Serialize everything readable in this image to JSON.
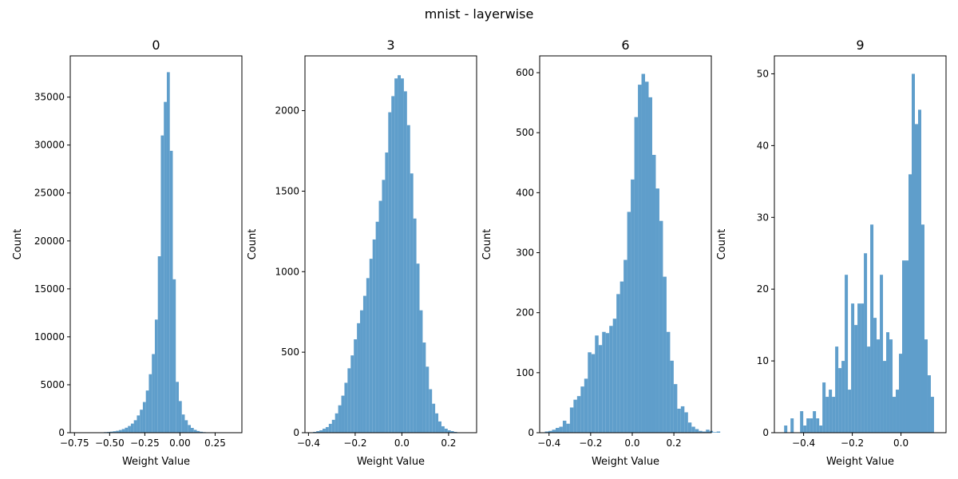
{
  "figure": {
    "title": "mnist - layerwise"
  },
  "chart_data": [
    {
      "type": "histogram",
      "title": "0",
      "xlabel": "Weight Value",
      "ylabel": "Count",
      "bar_color": "#5f9ecb",
      "xlim": [
        -0.78,
        0.44
      ],
      "ylim": [
        0,
        39300
      ],
      "xticks": [
        -0.75,
        -0.5,
        -0.25,
        0.0,
        0.25
      ],
      "xtick_labels": [
        "−0.75",
        "−0.50",
        "−0.25",
        "0.00",
        "0.25"
      ],
      "yticks": [
        0,
        5000,
        10000,
        15000,
        20000,
        25000,
        30000,
        35000
      ],
      "ytick_labels": [
        "0",
        "5000",
        "10000",
        "15000",
        "20000",
        "25000",
        "30000",
        "35000"
      ],
      "bins": {
        "start": -0.69,
        "width": 0.0213
      },
      "values": [
        2,
        3,
        5,
        8,
        15,
        25,
        40,
        60,
        80,
        110,
        150,
        200,
        280,
        380,
        520,
        700,
        950,
        1300,
        1800,
        2400,
        3200,
        4400,
        6100,
        8200,
        11800,
        18400,
        31000,
        34500,
        37600,
        29400,
        16000,
        5300,
        3300,
        1900,
        1300,
        800,
        500,
        300,
        180,
        100,
        60,
        30,
        15,
        8
      ]
    },
    {
      "type": "histogram",
      "title": "3",
      "xlabel": "Weight Value",
      "ylabel": "Count",
      "bar_color": "#5f9ecb",
      "xlim": [
        -0.415,
        0.32
      ],
      "ylim": [
        0,
        2340
      ],
      "xticks": [
        -0.4,
        -0.2,
        0.0,
        0.2
      ],
      "xtick_labels": [
        "−0.4",
        "−0.2",
        "0.0",
        "0.2"
      ],
      "yticks": [
        0,
        500,
        1000,
        1500,
        2000
      ],
      "ytick_labels": [
        "0",
        "500",
        "1000",
        "1500",
        "2000"
      ],
      "bins": {
        "start": -0.38,
        "width": 0.0134
      },
      "values": [
        5,
        10,
        15,
        25,
        35,
        55,
        80,
        120,
        170,
        230,
        310,
        400,
        480,
        580,
        680,
        760,
        850,
        960,
        1080,
        1200,
        1310,
        1440,
        1570,
        1740,
        1990,
        2090,
        2200,
        2220,
        2200,
        2120,
        1910,
        1610,
        1330,
        1050,
        760,
        560,
        410,
        270,
        180,
        120,
        70,
        40,
        25,
        15,
        10,
        5
      ]
    },
    {
      "type": "histogram",
      "title": "6",
      "xlabel": "Weight Value",
      "ylabel": "Count",
      "bar_color": "#5f9ecb",
      "xlim": [
        -0.445,
        0.38
      ],
      "ylim": [
        0,
        628
      ],
      "xticks": [
        -0.4,
        -0.2,
        0.0,
        0.2
      ],
      "xtick_labels": [
        "−0.4",
        "−0.2",
        "0.0",
        "0.2"
      ],
      "yticks": [
        0,
        100,
        200,
        300,
        400,
        500,
        600
      ],
      "ytick_labels": [
        "0",
        "100",
        "200",
        "300",
        "400",
        "500",
        "600"
      ],
      "bins": {
        "start": -0.42,
        "width": 0.0172
      },
      "values": [
        2,
        3,
        5,
        8,
        10,
        20,
        15,
        42,
        55,
        61,
        77,
        90,
        134,
        131,
        162,
        146,
        168,
        166,
        178,
        190,
        231,
        252,
        288,
        368,
        422,
        526,
        580,
        598,
        585,
        559,
        463,
        407,
        353,
        260,
        168,
        120,
        81,
        40,
        44,
        34,
        17,
        10,
        6,
        3,
        2,
        5,
        3,
        1,
        2
      ]
    },
    {
      "type": "histogram",
      "title": "9",
      "xlabel": "Weight Value",
      "ylabel": "Count",
      "bar_color": "#5f9ecb",
      "xlim": [
        -0.52,
        0.185
      ],
      "ylim": [
        0,
        52.5
      ],
      "xticks": [
        -0.4,
        -0.2,
        0.0
      ],
      "xtick_labels": [
        "−0.4",
        "−0.2",
        "0.0"
      ],
      "yticks": [
        0,
        10,
        20,
        30,
        40,
        50
      ],
      "ytick_labels": [
        "0",
        "10",
        "20",
        "30",
        "40",
        "50"
      ],
      "bins": {
        "start": -0.48,
        "width": 0.0131
      },
      "values": [
        1,
        0,
        2,
        0,
        0,
        3,
        1,
        2,
        2,
        3,
        2,
        1,
        7,
        5,
        6,
        5,
        12,
        9,
        10,
        22,
        6,
        18,
        15,
        18,
        18,
        25,
        12,
        29,
        16,
        13,
        22,
        10,
        14,
        13,
        5,
        6,
        11,
        24,
        24,
        36,
        50,
        43,
        45,
        29,
        13,
        8,
        5
      ]
    }
  ]
}
